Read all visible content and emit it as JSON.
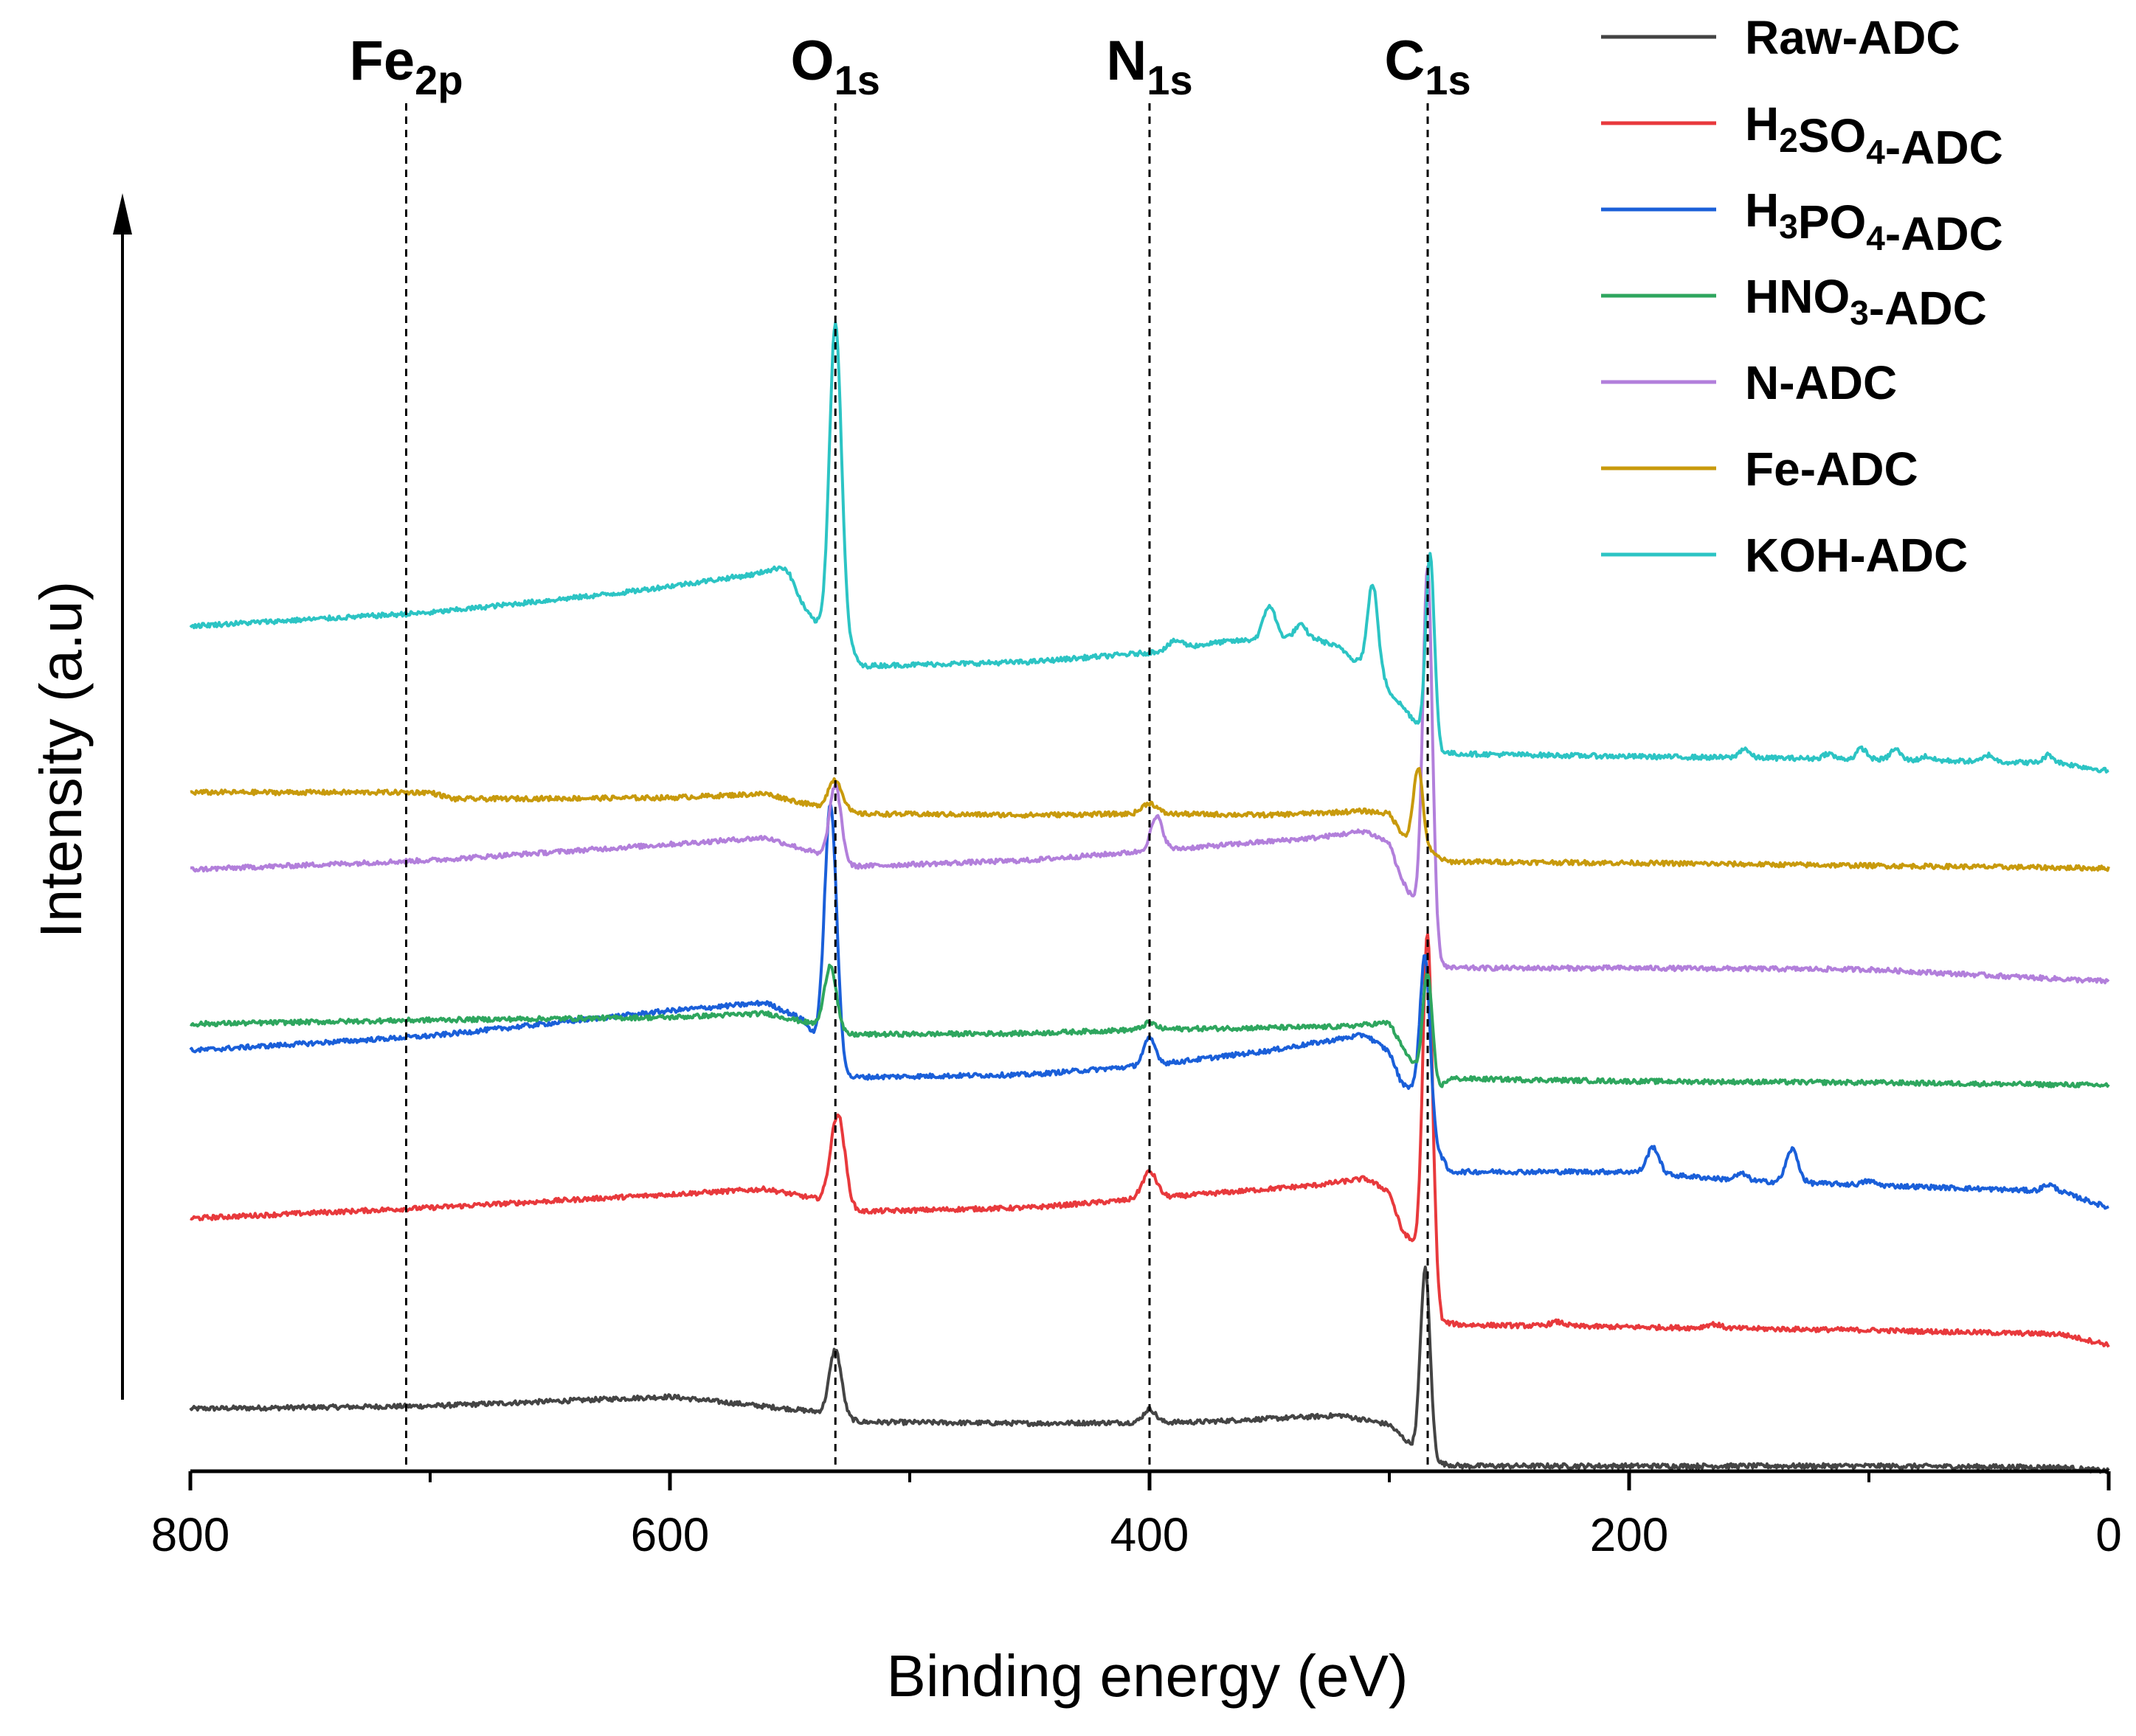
{
  "chart_data": {
    "type": "line",
    "title": "",
    "xlabel": "Binding energy (eV)",
    "ylabel": "Intensity (a.u)",
    "xlim": [
      800,
      0
    ],
    "x_reversed": true,
    "ylim": [
      0,
      100
    ],
    "x_ticks": [
      "800",
      "600",
      "400",
      "200",
      "0"
    ],
    "x_tick_values": [
      800,
      600,
      400,
      200,
      0
    ],
    "grid": false,
    "legend_position": "top-right",
    "peak_markers": [
      {
        "base": "Fe",
        "sub": "2p",
        "x": 710
      },
      {
        "base": "O",
        "sub": "1s",
        "x": 531
      },
      {
        "base": "N",
        "sub": "1s",
        "x": 400
      },
      {
        "base": "C",
        "sub": "1s",
        "x": 284
      }
    ],
    "series": [
      {
        "name": "Raw-ADC",
        "legend": [
          {
            "t": "Raw-ADC"
          }
        ],
        "color": "#444444",
        "baseline": [
          [
            800,
            4.7
          ],
          [
            700,
            4.9
          ],
          [
            600,
            5.6
          ],
          [
            540,
            4.5
          ],
          [
            520,
            3.7
          ],
          [
            450,
            3.6
          ],
          [
            380,
            3.7
          ],
          [
            320,
            4.2
          ],
          [
            300,
            3.5
          ],
          [
            290,
            1.8
          ],
          [
            280,
            0.6
          ],
          [
            270,
            0.4
          ],
          [
            100,
            0.4
          ],
          [
            20,
            0.3
          ],
          [
            0,
            0.0
          ]
        ],
        "peaks": [
          {
            "x": 531,
            "h": 5.0,
            "w": 2.5
          },
          {
            "x": 400,
            "h": 1.0,
            "w": 2.5
          },
          {
            "x": 285,
            "h": 14.0,
            "w": 2.0
          }
        ]
      },
      {
        "name": "H2SO4-ADC",
        "legend": [
          {
            "t": "H"
          },
          {
            "t": "2",
            "sub": true
          },
          {
            "t": "SO"
          },
          {
            "t": "4",
            "sub": true
          },
          {
            "t": "-ADC"
          }
        ],
        "color": "#e8393c",
        "baseline": [
          [
            800,
            19.0
          ],
          [
            700,
            19.8
          ],
          [
            600,
            20.8
          ],
          [
            560,
            21.2
          ],
          [
            540,
            20.5
          ],
          [
            525,
            19.5
          ],
          [
            450,
            19.8
          ],
          [
            400,
            20.5
          ],
          [
            330,
            21.5
          ],
          [
            310,
            22.0
          ],
          [
            300,
            21.0
          ],
          [
            295,
            18.2
          ],
          [
            285,
            16.0
          ],
          [
            278,
            11.2
          ],
          [
            270,
            11.0
          ],
          [
            100,
            10.6
          ],
          [
            20,
            10.3
          ],
          [
            0,
            9.5
          ]
        ],
        "peaks": [
          {
            "x": 530,
            "h": 7.0,
            "w": 3.0
          },
          {
            "x": 400,
            "h": 2.0,
            "w": 3.0
          },
          {
            "x": 284,
            "h": 25.0,
            "w": 2.0
          },
          {
            "x": 230,
            "h": 0.3,
            "w": 3.0
          },
          {
            "x": 165,
            "h": 0.3,
            "w": 3.0
          }
        ]
      },
      {
        "name": "H3PO4-ADC",
        "legend": [
          {
            "t": "H"
          },
          {
            "t": "3",
            "sub": true
          },
          {
            "t": "PO"
          },
          {
            "t": "4",
            "sub": true
          },
          {
            "t": "-ADC"
          }
        ],
        "color": "#1a5fd9",
        "baseline": [
          [
            800,
            31.6
          ],
          [
            700,
            32.7
          ],
          [
            600,
            34.6
          ],
          [
            560,
            35.2
          ],
          [
            545,
            34.0
          ],
          [
            535,
            31.5
          ],
          [
            525,
            29.6
          ],
          [
            450,
            29.8
          ],
          [
            400,
            30.5
          ],
          [
            350,
            31.6
          ],
          [
            310,
            32.8
          ],
          [
            300,
            31.5
          ],
          [
            295,
            29.2
          ],
          [
            288,
            28.5
          ],
          [
            282,
            25.0
          ],
          [
            275,
            22.5
          ],
          [
            200,
            22.5
          ],
          [
            150,
            21.8
          ],
          [
            50,
            21.2
          ],
          [
            20,
            21.0
          ],
          [
            0,
            19.8
          ]
        ],
        "peaks": [
          {
            "x": 533,
            "h": 19.0,
            "w": 2.5
          },
          {
            "x": 400,
            "h": 2.0,
            "w": 2.5
          },
          {
            "x": 285,
            "h": 12.0,
            "w": 2.0
          },
          {
            "x": 190,
            "h": 2.0,
            "w": 2.5
          },
          {
            "x": 153,
            "h": 0.5,
            "w": 2.5
          },
          {
            "x": 132,
            "h": 2.5,
            "w": 2.5
          },
          {
            "x": 100,
            "h": 0.3,
            "w": 2.5
          },
          {
            "x": 25,
            "h": 0.5,
            "w": 2.5
          }
        ]
      },
      {
        "name": "HNO3-ADC",
        "legend": [
          {
            "t": "HNO"
          },
          {
            "t": "3",
            "sub": true
          },
          {
            "t": "-ADC"
          }
        ],
        "color": "#2ea65e",
        "baseline": [
          [
            800,
            33.6
          ],
          [
            700,
            33.9
          ],
          [
            600,
            34.1
          ],
          [
            560,
            34.4
          ],
          [
            540,
            33.6
          ],
          [
            530,
            32.8
          ],
          [
            450,
            32.9
          ],
          [
            400,
            33.2
          ],
          [
            320,
            33.4
          ],
          [
            300,
            33.7
          ],
          [
            295,
            32.0
          ],
          [
            288,
            30.0
          ],
          [
            283,
            28.0
          ],
          [
            275,
            29.5
          ],
          [
            200,
            29.3
          ],
          [
            100,
            29.2
          ],
          [
            0,
            29.0
          ]
        ],
        "peaks": [
          {
            "x": 533,
            "h": 5.0,
            "w": 2.5
          },
          {
            "x": 400,
            "h": 0.5,
            "w": 2.5
          },
          {
            "x": 284,
            "h": 9.0,
            "w": 2.0
          }
        ]
      },
      {
        "name": "N-ADC",
        "legend": [
          {
            "t": "N-ADC"
          }
        ],
        "color": "#b27fdb",
        "baseline": [
          [
            800,
            45.2
          ],
          [
            700,
            45.9
          ],
          [
            600,
            47.1
          ],
          [
            560,
            47.6
          ],
          [
            540,
            46.5
          ],
          [
            530,
            45.4
          ],
          [
            450,
            45.9
          ],
          [
            400,
            46.6
          ],
          [
            330,
            47.6
          ],
          [
            310,
            48.1
          ],
          [
            300,
            47.2
          ],
          [
            295,
            44.5
          ],
          [
            288,
            42.3
          ],
          [
            282,
            38.5
          ],
          [
            275,
            37.8
          ],
          [
            200,
            37.8
          ],
          [
            100,
            37.7
          ],
          [
            0,
            36.8
          ]
        ],
        "peaks": [
          {
            "x": 531,
            "h": 6.0,
            "w": 2.5
          },
          {
            "x": 397,
            "h": 2.5,
            "w": 2.5
          },
          {
            "x": 284,
            "h": 28.0,
            "w": 2.0
          }
        ]
      },
      {
        "name": "Fe-ADC",
        "legend": [
          {
            "t": "Fe-ADC"
          }
        ],
        "color": "#c89a0c",
        "baseline": [
          [
            800,
            51.0
          ],
          [
            700,
            51.0
          ],
          [
            690,
            50.5
          ],
          [
            600,
            50.6
          ],
          [
            560,
            50.9
          ],
          [
            540,
            50.0
          ],
          [
            530,
            49.4
          ],
          [
            450,
            49.3
          ],
          [
            400,
            49.4
          ],
          [
            350,
            49.3
          ],
          [
            310,
            49.6
          ],
          [
            300,
            49.4
          ],
          [
            295,
            48.0
          ],
          [
            290,
            47.0
          ],
          [
            283,
            46.5
          ],
          [
            276,
            45.8
          ],
          [
            200,
            45.7
          ],
          [
            100,
            45.5
          ],
          [
            0,
            45.3
          ]
        ],
        "peaks": [
          {
            "x": 531,
            "h": 2.5,
            "w": 3.0
          },
          {
            "x": 400,
            "h": 0.8,
            "w": 3.0
          },
          {
            "x": 288,
            "h": 6.0,
            "w": 2.0
          }
        ]
      },
      {
        "name": "KOH-ADC",
        "legend": [
          {
            "t": "KOH-ADC"
          }
        ],
        "color": "#2cc4c4",
        "baseline": [
          [
            800,
            63.5
          ],
          [
            700,
            64.5
          ],
          [
            620,
            66.0
          ],
          [
            580,
            67.0
          ],
          [
            560,
            67.5
          ],
          [
            550,
            66.0
          ],
          [
            542,
            64.3
          ],
          [
            535,
            63.0
          ],
          [
            530,
            63.3
          ],
          [
            520,
            60.5
          ],
          [
            450,
            60.8
          ],
          [
            400,
            61.5
          ],
          [
            370,
            62.3
          ],
          [
            345,
            62.6
          ],
          [
            330,
            62.5
          ],
          [
            320,
            61.8
          ],
          [
            315,
            61.0
          ],
          [
            305,
            60.6
          ],
          [
            300,
            58.6
          ],
          [
            290,
            56.5
          ],
          [
            284,
            55.0
          ],
          [
            278,
            54.0
          ],
          [
            272,
            53.9
          ],
          [
            200,
            53.7
          ],
          [
            100,
            53.5
          ],
          [
            20,
            53.2
          ],
          [
            0,
            52.6
          ]
        ],
        "peaks": [
          {
            "x": 531,
            "h": 23.0,
            "w": 2.5
          },
          {
            "x": 552,
            "h": 1.5,
            "w": 4.0
          },
          {
            "x": 389,
            "h": 0.6,
            "w": 3.0
          },
          {
            "x": 350,
            "h": 2.5,
            "w": 2.5
          },
          {
            "x": 337,
            "h": 1.0,
            "w": 2.5
          },
          {
            "x": 307,
            "h": 6.0,
            "w": 2.0
          },
          {
            "x": 283,
            "h": 14.0,
            "w": 1.8
          },
          {
            "x": 152,
            "h": 0.7,
            "w": 2.0
          },
          {
            "x": 117,
            "h": 0.4,
            "w": 2.0
          },
          {
            "x": 103,
            "h": 0.8,
            "w": 2.0
          },
          {
            "x": 89,
            "h": 0.8,
            "w": 2.0
          },
          {
            "x": 76,
            "h": 0.3,
            "w": 2.0
          },
          {
            "x": 50,
            "h": 0.5,
            "w": 2.0
          },
          {
            "x": 25,
            "h": 0.6,
            "w": 2.0
          }
        ]
      }
    ]
  }
}
